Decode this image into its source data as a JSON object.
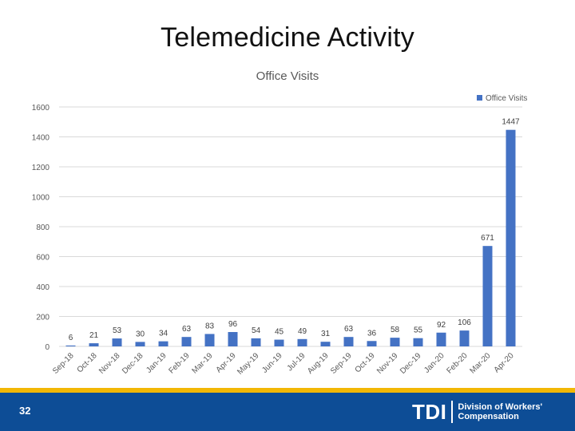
{
  "slide": {
    "title": "Telemedicine Activity",
    "page_number": "32"
  },
  "footer": {
    "logo_mark": "TDI",
    "logo_line1": "Division of Workers'",
    "logo_line2": "Compensation"
  },
  "colors": {
    "bar": "#4472c4",
    "grid": "#d9d9d9",
    "footer_blue": "#0d4d96",
    "footer_gold": "#f2b705"
  },
  "chart_data": {
    "type": "bar",
    "title": "Office Visits",
    "xlabel": "",
    "ylabel": "",
    "ylim": [
      0,
      1600
    ],
    "yticks": [
      0,
      200,
      400,
      600,
      800,
      1000,
      1200,
      1400,
      1600
    ],
    "grid": true,
    "legend_position": "top-right",
    "categories": [
      "Sep-18",
      "Oct-18",
      "Nov-18",
      "Dec-18",
      "Jan-19",
      "Feb-19",
      "Mar-19",
      "Apr-19",
      "May-19",
      "Jun-19",
      "Jul-19",
      "Aug-19",
      "Sep-19",
      "Oct-19",
      "Nov-19",
      "Dec-19",
      "Jan-20",
      "Feb-20",
      "Mar-20",
      "Apr-20"
    ],
    "series": [
      {
        "name": "Office Visits",
        "values": [
          6,
          21,
          53,
          30,
          34,
          63,
          83,
          96,
          54,
          45,
          49,
          31,
          63,
          36,
          58,
          55,
          92,
          106,
          671,
          1447
        ]
      }
    ]
  }
}
